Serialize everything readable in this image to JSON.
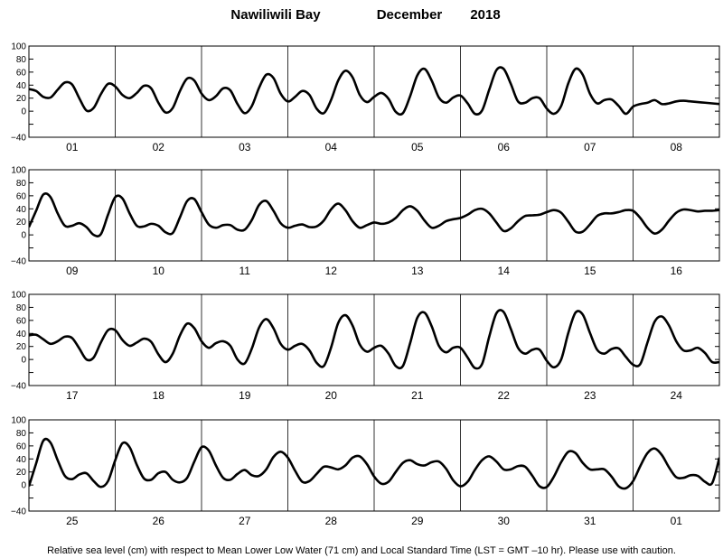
{
  "title": {
    "location": "Nawiliwili Bay",
    "month": "December",
    "year": "2018"
  },
  "footnote": "Relative sea level (cm) with respect to Mean Lower Low Water (71 cm) and Local Standard Time (LST = GMT –10 hr). Please use with caution.",
  "colors": {
    "line": "#000000",
    "grid": "#000000",
    "frame": "#000000"
  },
  "chart_data": [
    {
      "type": "line",
      "panel": 1,
      "ylim": [
        -40,
        100
      ],
      "yticks": [
        "100",
        "80",
        "60",
        "40",
        "20",
        "0",
        "−40"
      ],
      "y_tick_values": [
        100,
        80,
        60,
        40,
        20,
        0,
        -40
      ],
      "days": [
        "01",
        "02",
        "03",
        "04",
        "05",
        "06",
        "07",
        "08"
      ],
      "x_units": "hours from 00:00 of first day",
      "x": [
        0,
        2,
        4,
        6,
        8,
        10,
        12,
        14,
        16,
        18,
        20,
        22,
        24,
        26,
        28,
        30,
        32,
        34,
        36,
        38,
        40,
        42,
        44,
        46,
        48,
        50,
        52,
        54,
        56,
        58,
        60,
        62,
        64,
        66,
        68,
        70,
        72,
        74,
        76,
        78,
        80,
        82,
        84,
        86,
        88,
        90,
        92,
        94,
        96,
        98,
        100,
        102,
        104,
        106,
        108,
        110,
        112,
        114,
        116,
        118,
        120,
        122,
        124,
        126,
        128,
        130,
        132,
        134,
        136,
        138,
        140,
        142,
        144,
        146,
        148,
        150,
        152,
        154,
        156,
        158,
        160,
        162,
        164,
        166,
        168,
        170,
        172,
        174,
        176,
        178,
        180,
        182,
        184,
        186,
        188,
        190,
        192
      ],
      "values": [
        34,
        31,
        22,
        21,
        33,
        44,
        41,
        20,
        1,
        5,
        26,
        42,
        38,
        25,
        20,
        28,
        39,
        35,
        13,
        -2,
        5,
        31,
        50,
        47,
        27,
        17,
        23,
        35,
        32,
        11,
        -3,
        8,
        36,
        56,
        51,
        27,
        15,
        22,
        31,
        25,
        4,
        -3,
        17,
        47,
        62,
        52,
        25,
        14,
        22,
        28,
        19,
        -1,
        -3,
        23,
        55,
        65,
        47,
        21,
        13,
        21,
        24,
        12,
        -4,
        1,
        33,
        63,
        65,
        42,
        15,
        13,
        20,
        20,
        4,
        -4,
        8,
        43,
        65,
        56,
        27,
        12,
        17,
        18,
        8,
        -4,
        7,
        11,
        13,
        17,
        11,
        12,
        15,
        16,
        15,
        14,
        13,
        12,
        11
      ],
      "values_note": "panel 1 series"
    },
    {
      "type": "line",
      "panel": 2,
      "ylim": [
        -40,
        100
      ],
      "yticks": [
        "100",
        "80",
        "60",
        "40",
        "20",
        "0",
        "−40"
      ],
      "y_tick_values": [
        100,
        80,
        60,
        40,
        20,
        0,
        -40
      ],
      "days": [
        "09",
        "10",
        "11",
        "12",
        "13",
        "14",
        "15",
        "16"
      ],
      "x_units": "hours from 00:00 of first day",
      "x": [
        0,
        2,
        4,
        6,
        8,
        10,
        12,
        14,
        16,
        18,
        20,
        22,
        24,
        26,
        28,
        30,
        32,
        34,
        36,
        38,
        40,
        42,
        44,
        46,
        48,
        50,
        52,
        54,
        56,
        58,
        60,
        62,
        64,
        66,
        68,
        70,
        72,
        74,
        76,
        78,
        80,
        82,
        84,
        86,
        88,
        90,
        92,
        94,
        96,
        98,
        100,
        102,
        104,
        106,
        108,
        110,
        112,
        114,
        116,
        118,
        120,
        122,
        124,
        126,
        128,
        130,
        132,
        134,
        136,
        138,
        140,
        142,
        144,
        146,
        148,
        150,
        152,
        154,
        156,
        158,
        160,
        162,
        164,
        166,
        168,
        170,
        172,
        174,
        176,
        178,
        180,
        182,
        184,
        186,
        188,
        190,
        192
      ],
      "values": [
        12,
        37,
        62,
        58,
        33,
        14,
        14,
        18,
        12,
        0,
        1,
        31,
        58,
        56,
        33,
        14,
        13,
        17,
        14,
        4,
        3,
        27,
        52,
        55,
        35,
        16,
        11,
        15,
        15,
        8,
        8,
        23,
        46,
        52,
        37,
        18,
        11,
        14,
        16,
        12,
        13,
        22,
        39,
        48,
        38,
        21,
        11,
        15,
        19,
        17,
        19,
        26,
        38,
        44,
        37,
        22,
        11,
        14,
        21,
        24,
        26,
        31,
        38,
        40,
        33,
        19,
        6,
        10,
        21,
        29,
        30,
        31,
        35,
        38,
        34,
        20,
        5,
        5,
        16,
        29,
        33,
        33,
        35,
        38,
        37,
        26,
        11,
        2,
        8,
        22,
        34,
        39,
        38,
        36,
        37,
        37,
        38
      ],
      "values_note": "panel 2 series"
    },
    {
      "type": "line",
      "panel": 3,
      "ylim": [
        -40,
        100
      ],
      "yticks": [
        "100",
        "80",
        "60",
        "40",
        "20",
        "0",
        "−40"
      ],
      "y_tick_values": [
        100,
        80,
        60,
        40,
        20,
        0,
        -40
      ],
      "days": [
        "17",
        "18",
        "19",
        "20",
        "21",
        "22",
        "23",
        "24"
      ],
      "x_units": "hours from 00:00 of first day",
      "x": [
        0,
        2,
        4,
        6,
        8,
        10,
        12,
        14,
        16,
        18,
        20,
        22,
        24,
        26,
        28,
        30,
        32,
        34,
        36,
        38,
        40,
        42,
        44,
        46,
        48,
        50,
        52,
        54,
        56,
        58,
        60,
        62,
        64,
        66,
        68,
        70,
        72,
        74,
        76,
        78,
        80,
        82,
        84,
        86,
        88,
        90,
        92,
        94,
        96,
        98,
        100,
        102,
        104,
        106,
        108,
        110,
        112,
        114,
        116,
        118,
        120,
        122,
        124,
        126,
        128,
        130,
        132,
        134,
        136,
        138,
        140,
        142,
        144,
        146,
        148,
        150,
        152,
        154,
        156,
        158,
        160,
        162,
        164,
        166,
        168,
        170,
        172,
        174,
        176,
        178,
        180,
        182,
        184,
        186,
        188,
        190,
        192
      ],
      "values": [
        37,
        38,
        31,
        24,
        28,
        35,
        33,
        17,
        0,
        3,
        26,
        45,
        45,
        30,
        21,
        26,
        32,
        27,
        8,
        -4,
        9,
        37,
        55,
        48,
        28,
        18,
        25,
        28,
        21,
        0,
        -6,
        17,
        49,
        62,
        48,
        24,
        15,
        21,
        24,
        14,
        -5,
        -10,
        18,
        56,
        68,
        52,
        23,
        12,
        18,
        21,
        9,
        -10,
        -10,
        25,
        64,
        72,
        51,
        21,
        11,
        18,
        18,
        3,
        -13,
        -7,
        35,
        71,
        73,
        47,
        18,
        9,
        15,
        15,
        -2,
        -12,
        0,
        41,
        72,
        69,
        41,
        15,
        9,
        16,
        17,
        4,
        -8,
        -7,
        26,
        58,
        66,
        52,
        28,
        14,
        14,
        18,
        10,
        -4,
        -4
      ],
      "values_note": "panel 3 series"
    },
    {
      "type": "line",
      "panel": 4,
      "ylim": [
        -40,
        100
      ],
      "yticks": [
        "100",
        "80",
        "60",
        "40",
        "20",
        "0",
        "−40"
      ],
      "y_tick_values": [
        100,
        80,
        60,
        40,
        20,
        0,
        -40
      ],
      "days": [
        "25",
        "26",
        "27",
        "28",
        "29",
        "30",
        "31",
        "01"
      ],
      "x_units": "hours from 00:00 of first day",
      "x": [
        0,
        2,
        4,
        6,
        8,
        10,
        12,
        14,
        16,
        18,
        20,
        22,
        24,
        26,
        28,
        30,
        32,
        34,
        36,
        38,
        40,
        42,
        44,
        46,
        48,
        50,
        52,
        54,
        56,
        58,
        60,
        62,
        64,
        66,
        68,
        70,
        72,
        74,
        76,
        78,
        80,
        82,
        84,
        86,
        88,
        90,
        92,
        94,
        96,
        98,
        100,
        102,
        104,
        106,
        108,
        110,
        112,
        114,
        116,
        118,
        120,
        122,
        124,
        126,
        128,
        130,
        132,
        134,
        136,
        138,
        140,
        142,
        144,
        146,
        148,
        150,
        152,
        154,
        156,
        158,
        160,
        162,
        164,
        166,
        168,
        170,
        172,
        174,
        176,
        178,
        180,
        182,
        184,
        186,
        188,
        190,
        192
      ],
      "values": [
        -2,
        33,
        68,
        65,
        38,
        14,
        9,
        16,
        18,
        6,
        -3,
        6,
        38,
        64,
        58,
        31,
        10,
        8,
        18,
        20,
        8,
        4,
        11,
        36,
        58,
        53,
        30,
        11,
        8,
        17,
        23,
        15,
        14,
        24,
        43,
        51,
        42,
        22,
        5,
        6,
        17,
        28,
        27,
        24,
        30,
        42,
        44,
        32,
        13,
        2,
        5,
        20,
        34,
        38,
        32,
        30,
        35,
        36,
        25,
        7,
        -2,
        5,
        23,
        38,
        44,
        36,
        24,
        24,
        29,
        28,
        14,
        -2,
        -3,
        13,
        35,
        51,
        49,
        34,
        24,
        24,
        24,
        13,
        -2,
        -5,
        6,
        29,
        49,
        56,
        46,
        27,
        12,
        11,
        15,
        14,
        5,
        3,
        42
      ],
      "values_note": "panel 4 series"
    }
  ]
}
